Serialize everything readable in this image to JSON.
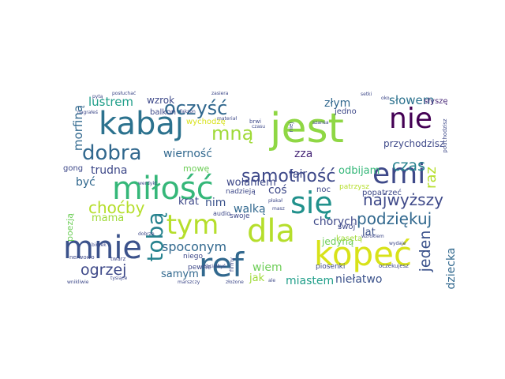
{
  "word_cloud": {
    "words": [
      {
        "text": "jest",
        "color": "#8fd744"
      },
      {
        "text": "kabaj",
        "color": "#2c728e"
      },
      {
        "text": "miłość",
        "color": "#35b779"
      },
      {
        "text": "mnie",
        "color": "#3b528b"
      },
      {
        "text": "ref",
        "color": "#31688e"
      },
      {
        "text": "kopeć",
        "color": "#d8e219"
      },
      {
        "text": "dla",
        "color": "#b5de2b"
      },
      {
        "text": "się",
        "color": "#21918c"
      },
      {
        "text": "nie",
        "color": "#440154"
      },
      {
        "text": "emi",
        "color": "#3e4989"
      },
      {
        "text": "oczyść",
        "color": "#31688e"
      },
      {
        "text": "dobra",
        "color": "#31688e"
      },
      {
        "text": "samotność",
        "color": "#3e4989"
      },
      {
        "text": "tobą",
        "color": "#26828e"
      },
      {
        "text": "tym",
        "color": "#b5de2b"
      },
      {
        "text": "mną",
        "color": "#a0da39"
      },
      {
        "text": "najwyższy",
        "color": "#3e4989"
      },
      {
        "text": "podziękuj",
        "color": "#31688e"
      },
      {
        "text": "choćby",
        "color": "#b5de2b"
      },
      {
        "text": "jeden",
        "color": "#3b528b"
      },
      {
        "text": "ogrzej",
        "color": "#3e4989"
      },
      {
        "text": "czas",
        "color": "#26828e"
      },
      {
        "text": "raz",
        "color": "#b5de2b"
      },
      {
        "text": "lustrem",
        "color": "#1f9e89"
      },
      {
        "text": "morfiną",
        "color": "#31688e"
      },
      {
        "text": "słowem",
        "color": "#2c728e"
      },
      {
        "text": "spoconym",
        "color": "#31688e"
      },
      {
        "text": "złym",
        "color": "#31688e"
      },
      {
        "text": "wierność",
        "color": "#31688e"
      },
      {
        "text": "trudna",
        "color": "#3e4989"
      },
      {
        "text": "walką",
        "color": "#31688e"
      },
      {
        "text": "miastem",
        "color": "#1f9e89"
      },
      {
        "text": "niełatwo",
        "color": "#3b528b"
      },
      {
        "text": "wołaniem",
        "color": "#3e4989"
      },
      {
        "text": "odbijam",
        "color": "#35b779"
      },
      {
        "text": "przychodzisz",
        "color": "#3e4989"
      },
      {
        "text": "chorych",
        "color": "#3e4989"
      },
      {
        "text": "samym",
        "color": "#31688e"
      },
      {
        "text": "wiem",
        "color": "#6ece58"
      },
      {
        "text": "lat",
        "color": "#3b528b"
      },
      {
        "text": "fair",
        "color": "#3e4989"
      },
      {
        "text": "zza",
        "color": "#482878"
      },
      {
        "text": "krat",
        "color": "#3e4989"
      },
      {
        "text": "nim",
        "color": "#3b528b"
      },
      {
        "text": "mama",
        "color": "#a0da39"
      },
      {
        "text": "wzrok",
        "color": "#3e4989"
      },
      {
        "text": "dziecka",
        "color": "#31688e"
      },
      {
        "text": "być",
        "color": "#31688e"
      },
      {
        "text": "coś",
        "color": "#3e4989"
      },
      {
        "text": "jak",
        "color": "#a0da39"
      },
      {
        "text": "mowę",
        "color": "#6ece58"
      },
      {
        "text": "jedyną",
        "color": "#6ece58"
      },
      {
        "text": "poezją",
        "color": "#6ece58"
      },
      {
        "text": "gong",
        "color": "#3e4989"
      },
      {
        "text": "balkon",
        "color": "#3e4989"
      },
      {
        "text": "wychodzę",
        "color": "#d8e219"
      },
      {
        "text": "słyszę",
        "color": "#482878"
      },
      {
        "text": "jedno",
        "color": "#3e4989"
      },
      {
        "text": "noc",
        "color": "#3e4989"
      },
      {
        "text": "patrzysz",
        "color": "#b5de2b"
      },
      {
        "text": "popatrzeć",
        "color": "#3e4989"
      },
      {
        "text": "swoj",
        "color": "#3e4989"
      },
      {
        "text": "kasetą",
        "color": "#a0da39"
      },
      {
        "text": "piosenki",
        "color": "#3e4989"
      },
      {
        "text": "nadzieją",
        "color": "#3e4989"
      },
      {
        "text": "swoje",
        "color": "#3e4989"
      },
      {
        "text": "audio",
        "color": "#3e4989"
      },
      {
        "text": "niego",
        "color": "#3e4989"
      },
      {
        "text": "pewne",
        "color": "#3e4989"
      },
      {
        "text": "nerwowo",
        "color": "#3e4989"
      },
      {
        "text": "twarz",
        "color": "#3e4989"
      },
      {
        "text": "firmy",
        "color": "#3e4989"
      },
      {
        "text": "oczekujesz",
        "color": "#3e4989"
      },
      {
        "text": "podchodzisz",
        "color": "#3e4989"
      },
      {
        "text": "brwi",
        "color": "#3e4989"
      },
      {
        "text": "czasu",
        "color": "#3e4989"
      },
      {
        "text": "materiał",
        "color": "#3e4989"
      },
      {
        "text": "niej",
        "color": "#3e4989"
      },
      {
        "text": "zasiera",
        "color": "#3e4989"
      },
      {
        "text": "fakson",
        "color": "#3e4989"
      },
      {
        "text": "posłuchać",
        "color": "#3e4989"
      },
      {
        "text": "nagrałeś",
        "color": "#3e4989"
      },
      {
        "text": "pytą",
        "color": "#3e4989"
      },
      {
        "text": "setki",
        "color": "#3e4989"
      },
      {
        "text": "oko",
        "color": "#3e4989"
      },
      {
        "text": "werdykt",
        "color": "#3e4989"
      },
      {
        "text": "biurek",
        "color": "#3e4989"
      },
      {
        "text": "chciałbyś",
        "color": "#3e4989"
      },
      {
        "text": "tysiące",
        "color": "#3e4989"
      },
      {
        "text": "wnikliwie",
        "color": "#3e4989"
      },
      {
        "text": "marszczy",
        "color": "#3e4989"
      },
      {
        "text": "złożone",
        "color": "#3e4989"
      },
      {
        "text": "ale",
        "color": "#3e4989"
      },
      {
        "text": "masz",
        "color": "#3e4989"
      },
      {
        "text": "wydaje",
        "color": "#3e4989"
      },
      {
        "text": "wzrokiem",
        "color": "#3e4989"
      },
      {
        "text": "szansa",
        "color": "#3e4989"
      },
      {
        "text": "płakał",
        "color": "#3e4989"
      },
      {
        "text": "dobrze",
        "color": "#3e4989"
      }
    ]
  }
}
